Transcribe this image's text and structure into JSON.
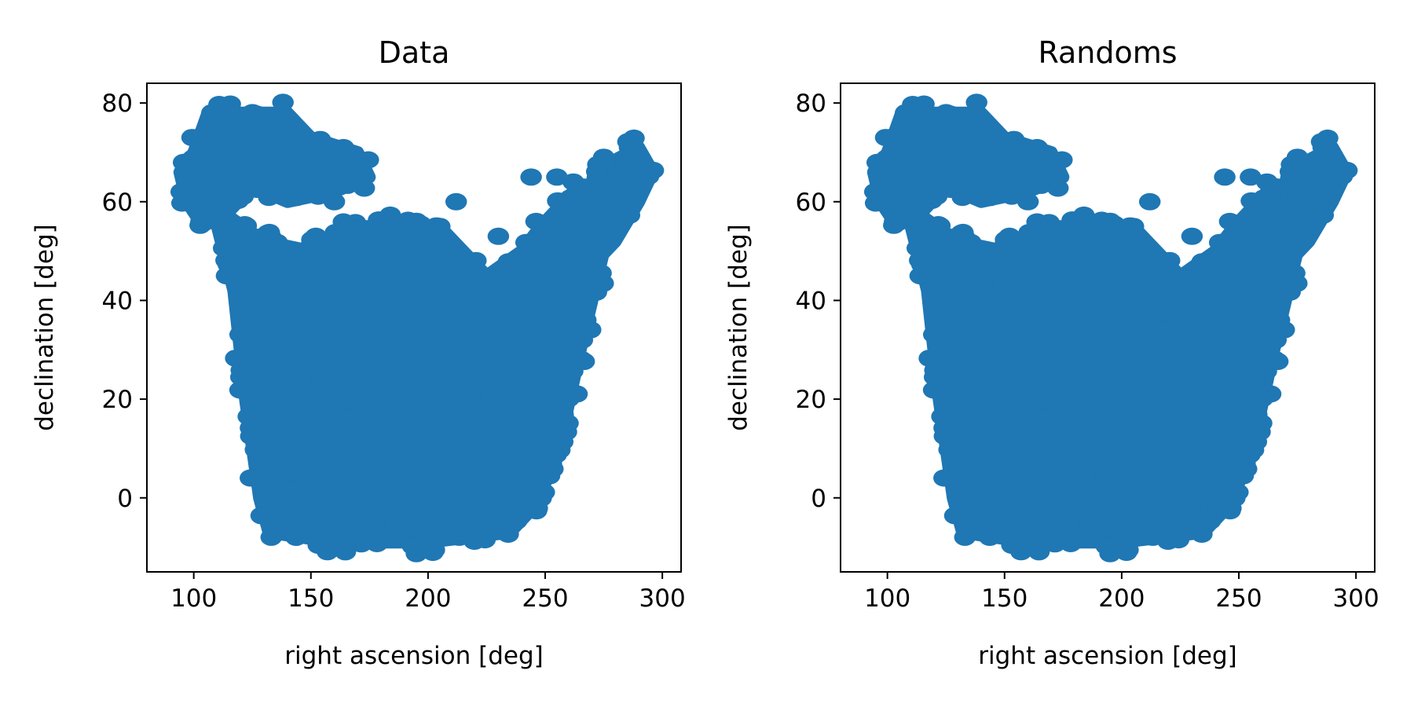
{
  "chart_data": [
    {
      "type": "scatter",
      "title": "Data",
      "xlabel": "right ascension [deg]",
      "ylabel": "declination [deg]",
      "xlim": [
        80,
        308
      ],
      "ylim": [
        -15,
        84
      ],
      "xticks": [
        100,
        150,
        200,
        250,
        300
      ],
      "yticks": [
        0,
        20,
        40,
        60,
        80
      ],
      "grid": false,
      "color": "#1f77b4",
      "footprint": {
        "main_region": [
          [
            110,
            55
          ],
          [
            117,
            42
          ],
          [
            122,
            20
          ],
          [
            128,
            0
          ],
          [
            132,
            -7
          ],
          [
            160,
            -9
          ],
          [
            200,
            -9
          ],
          [
            235,
            -7
          ],
          [
            245,
            -2
          ],
          [
            255,
            8
          ],
          [
            265,
            30
          ],
          [
            275,
            50
          ],
          [
            270,
            58
          ],
          [
            258,
            60
          ],
          [
            248,
            55
          ],
          [
            240,
            50
          ],
          [
            225,
            45
          ],
          [
            205,
            55
          ],
          [
            170,
            55
          ],
          [
            150,
            50
          ],
          [
            130,
            52
          ],
          [
            115,
            57
          ]
        ],
        "upper_left_region": [
          [
            94,
            66
          ],
          [
            100,
            70
          ],
          [
            106,
            78
          ],
          [
            140,
            78
          ],
          [
            150,
            73
          ],
          [
            170,
            70
          ],
          [
            175,
            65
          ],
          [
            160,
            62
          ],
          [
            140,
            60
          ],
          [
            125,
            63
          ],
          [
            115,
            58
          ],
          [
            104,
            55
          ],
          [
            97,
            60
          ]
        ],
        "upper_right_region": [
          [
            258,
            55
          ],
          [
            266,
            62
          ],
          [
            278,
            68
          ],
          [
            290,
            71
          ],
          [
            296,
            66
          ],
          [
            290,
            60
          ],
          [
            280,
            52
          ],
          [
            270,
            47
          ],
          [
            262,
            50
          ]
        ]
      },
      "isolated_points": [
        [
          212,
          60
        ],
        [
          244,
          65
        ],
        [
          255,
          65
        ],
        [
          262,
          64
        ],
        [
          275,
          69
        ],
        [
          286,
          71
        ],
        [
          205,
          55
        ],
        [
          195,
          52
        ],
        [
          185,
          50
        ],
        [
          160,
          60
        ],
        [
          148,
          66
        ],
        [
          168,
          65
        ],
        [
          230,
          53
        ]
      ]
    },
    {
      "type": "scatter",
      "title": "Randoms",
      "xlabel": "right ascension [deg]",
      "ylabel": "declination [deg]",
      "xlim": [
        80,
        308
      ],
      "ylim": [
        -15,
        84
      ],
      "xticks": [
        100,
        150,
        200,
        250,
        300
      ],
      "yticks": [
        0,
        20,
        40,
        60,
        80
      ],
      "grid": false,
      "color": "#1f77b4",
      "footprint": {
        "main_region": [
          [
            110,
            55
          ],
          [
            117,
            42
          ],
          [
            122,
            20
          ],
          [
            128,
            0
          ],
          [
            132,
            -7
          ],
          [
            160,
            -9
          ],
          [
            200,
            -9
          ],
          [
            235,
            -7
          ],
          [
            245,
            -2
          ],
          [
            255,
            8
          ],
          [
            265,
            30
          ],
          [
            275,
            50
          ],
          [
            270,
            58
          ],
          [
            258,
            60
          ],
          [
            248,
            55
          ],
          [
            240,
            50
          ],
          [
            225,
            45
          ],
          [
            205,
            55
          ],
          [
            170,
            55
          ],
          [
            150,
            50
          ],
          [
            130,
            52
          ],
          [
            115,
            57
          ]
        ],
        "upper_left_region": [
          [
            94,
            66
          ],
          [
            100,
            70
          ],
          [
            106,
            78
          ],
          [
            140,
            78
          ],
          [
            150,
            73
          ],
          [
            170,
            70
          ],
          [
            175,
            65
          ],
          [
            160,
            62
          ],
          [
            140,
            60
          ],
          [
            125,
            63
          ],
          [
            115,
            58
          ],
          [
            104,
            55
          ],
          [
            97,
            60
          ]
        ],
        "upper_right_region": [
          [
            258,
            55
          ],
          [
            266,
            62
          ],
          [
            278,
            68
          ],
          [
            290,
            71
          ],
          [
            296,
            66
          ],
          [
            290,
            60
          ],
          [
            280,
            52
          ],
          [
            270,
            47
          ],
          [
            262,
            50
          ]
        ]
      },
      "isolated_points": [
        [
          212,
          60
        ],
        [
          244,
          65
        ],
        [
          255,
          65
        ],
        [
          262,
          64
        ],
        [
          275,
          69
        ],
        [
          286,
          71
        ],
        [
          205,
          55
        ],
        [
          195,
          52
        ],
        [
          185,
          50
        ],
        [
          160,
          60
        ],
        [
          148,
          66
        ],
        [
          168,
          65
        ],
        [
          230,
          53
        ]
      ]
    }
  ]
}
